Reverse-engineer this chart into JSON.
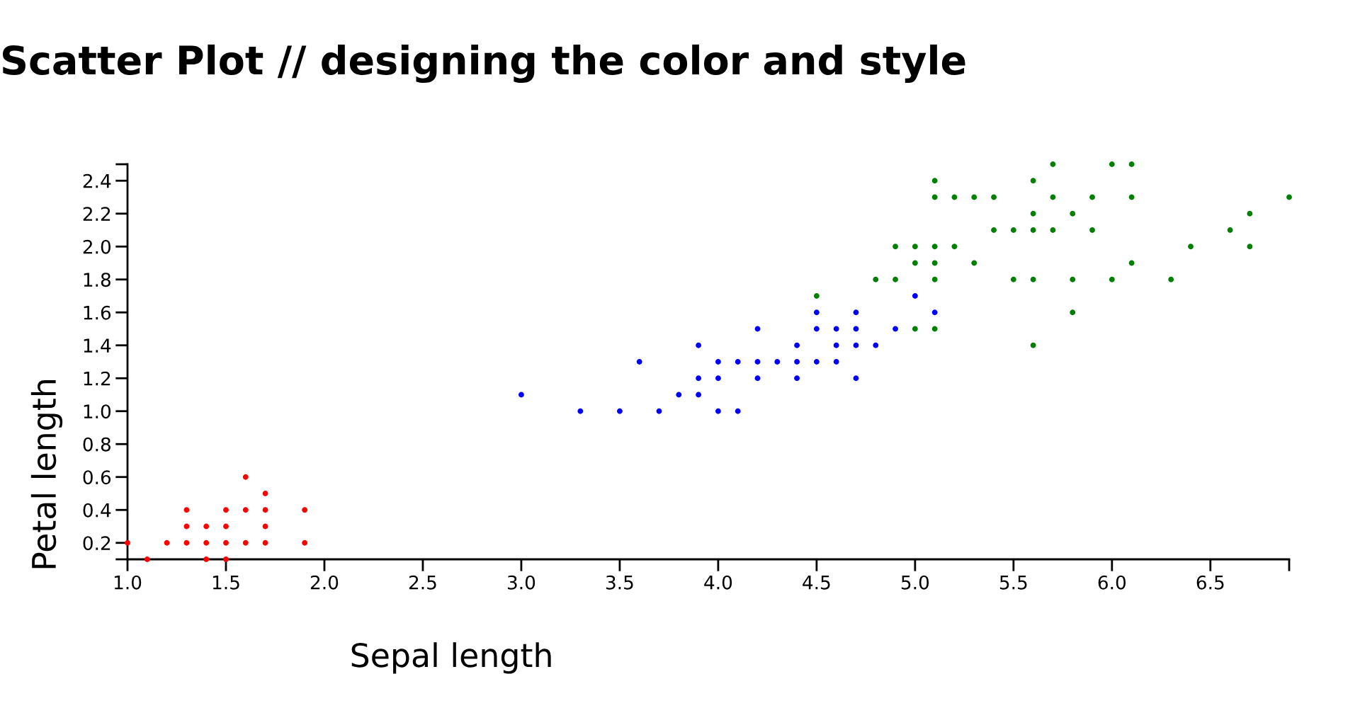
{
  "chart_data": {
    "type": "scatter",
    "title": "Scatter Plot // designing the color and style",
    "xlabel": "Sepal length",
    "ylabel": "Petal length",
    "xlim": [
      1.0,
      6.9
    ],
    "ylim": [
      0.1,
      2.5
    ],
    "xticks": [
      {
        "value": 1,
        "label": "1.0"
      },
      1.5,
      {
        "value": 2,
        "label": "2.0"
      },
      2.5,
      {
        "value": 3,
        "label": "3.0"
      },
      3.5,
      {
        "value": 4,
        "label": "4.0"
      },
      4.5,
      {
        "value": 5,
        "label": "5.0"
      },
      5.5,
      {
        "value": 6,
        "label": "6.0"
      },
      6.5,
      {
        "value": 6.9,
        "label": null
      }
    ],
    "yticks": [
      {
        "value": 0.1,
        "label": null
      },
      0.2,
      0.4,
      0.6,
      0.8,
      {
        "value": 1,
        "label": "1.0"
      },
      1.2,
      1.4,
      1.6,
      1.8,
      {
        "value": 2,
        "label": "2.0"
      },
      2.2,
      2.4,
      {
        "value": 2.5,
        "label": null
      }
    ],
    "marker": "circle",
    "series": [
      {
        "color": "#ff0000",
        "x": [
          1.1,
          1.4,
          1.5,
          1.0,
          1.2,
          1.3,
          1.4,
          1.5,
          1.6,
          1.7,
          1.9,
          1.3,
          1.4,
          1.5,
          1.7,
          1.3,
          1.5,
          1.6,
          1.7,
          1.9,
          1.7,
          1.6
        ],
        "values": [
          0.1,
          0.1,
          0.1,
          0.2,
          0.2,
          0.2,
          0.2,
          0.2,
          0.2,
          0.2,
          0.2,
          0.3,
          0.3,
          0.3,
          0.3,
          0.4,
          0.4,
          0.4,
          0.4,
          0.4,
          0.5,
          0.6
        ]
      },
      {
        "color": "#0000ff",
        "x": [
          3.3,
          3.5,
          3.7,
          4.0,
          4.1,
          3.0,
          3.8,
          3.9,
          3.9,
          4.0,
          4.2,
          4.4,
          4.7,
          3.6,
          4.0,
          4.1,
          4.2,
          4.3,
          4.4,
          4.5,
          4.6,
          3.9,
          4.4,
          4.6,
          4.7,
          4.8,
          4.2,
          4.5,
          4.6,
          4.7,
          4.9,
          4.5,
          4.7,
          5.1,
          5.0
        ],
        "values": [
          1.0,
          1.0,
          1.0,
          1.0,
          1.0,
          1.1,
          1.1,
          1.1,
          1.2,
          1.2,
          1.2,
          1.2,
          1.2,
          1.3,
          1.3,
          1.3,
          1.3,
          1.3,
          1.3,
          1.3,
          1.3,
          1.4,
          1.4,
          1.4,
          1.4,
          1.4,
          1.5,
          1.5,
          1.5,
          1.5,
          1.5,
          1.6,
          1.6,
          1.6,
          1.7
        ]
      },
      {
        "color": "#008000",
        "x": [
          5.6,
          5.0,
          5.1,
          5.8,
          4.5,
          4.8,
          4.9,
          5.1,
          5.5,
          5.6,
          5.8,
          6.0,
          6.3,
          5.0,
          5.1,
          5.3,
          6.1,
          4.9,
          5.0,
          5.1,
          5.2,
          6.4,
          6.7,
          5.4,
          5.5,
          5.6,
          5.7,
          5.9,
          6.6,
          5.6,
          5.8,
          6.7,
          5.1,
          5.2,
          5.3,
          5.4,
          5.7,
          5.9,
          6.1,
          6.9,
          5.1,
          5.6,
          5.7,
          6.0,
          6.1
        ],
        "values": [
          1.4,
          1.5,
          1.5,
          1.6,
          1.7,
          1.8,
          1.8,
          1.8,
          1.8,
          1.8,
          1.8,
          1.8,
          1.8,
          1.9,
          1.9,
          1.9,
          1.9,
          2.0,
          2.0,
          2.0,
          2.0,
          2.0,
          2.0,
          2.1,
          2.1,
          2.1,
          2.1,
          2.1,
          2.1,
          2.2,
          2.2,
          2.2,
          2.3,
          2.3,
          2.3,
          2.3,
          2.3,
          2.3,
          2.3,
          2.3,
          2.4,
          2.4,
          2.5,
          2.5,
          2.5
        ]
      }
    ]
  }
}
